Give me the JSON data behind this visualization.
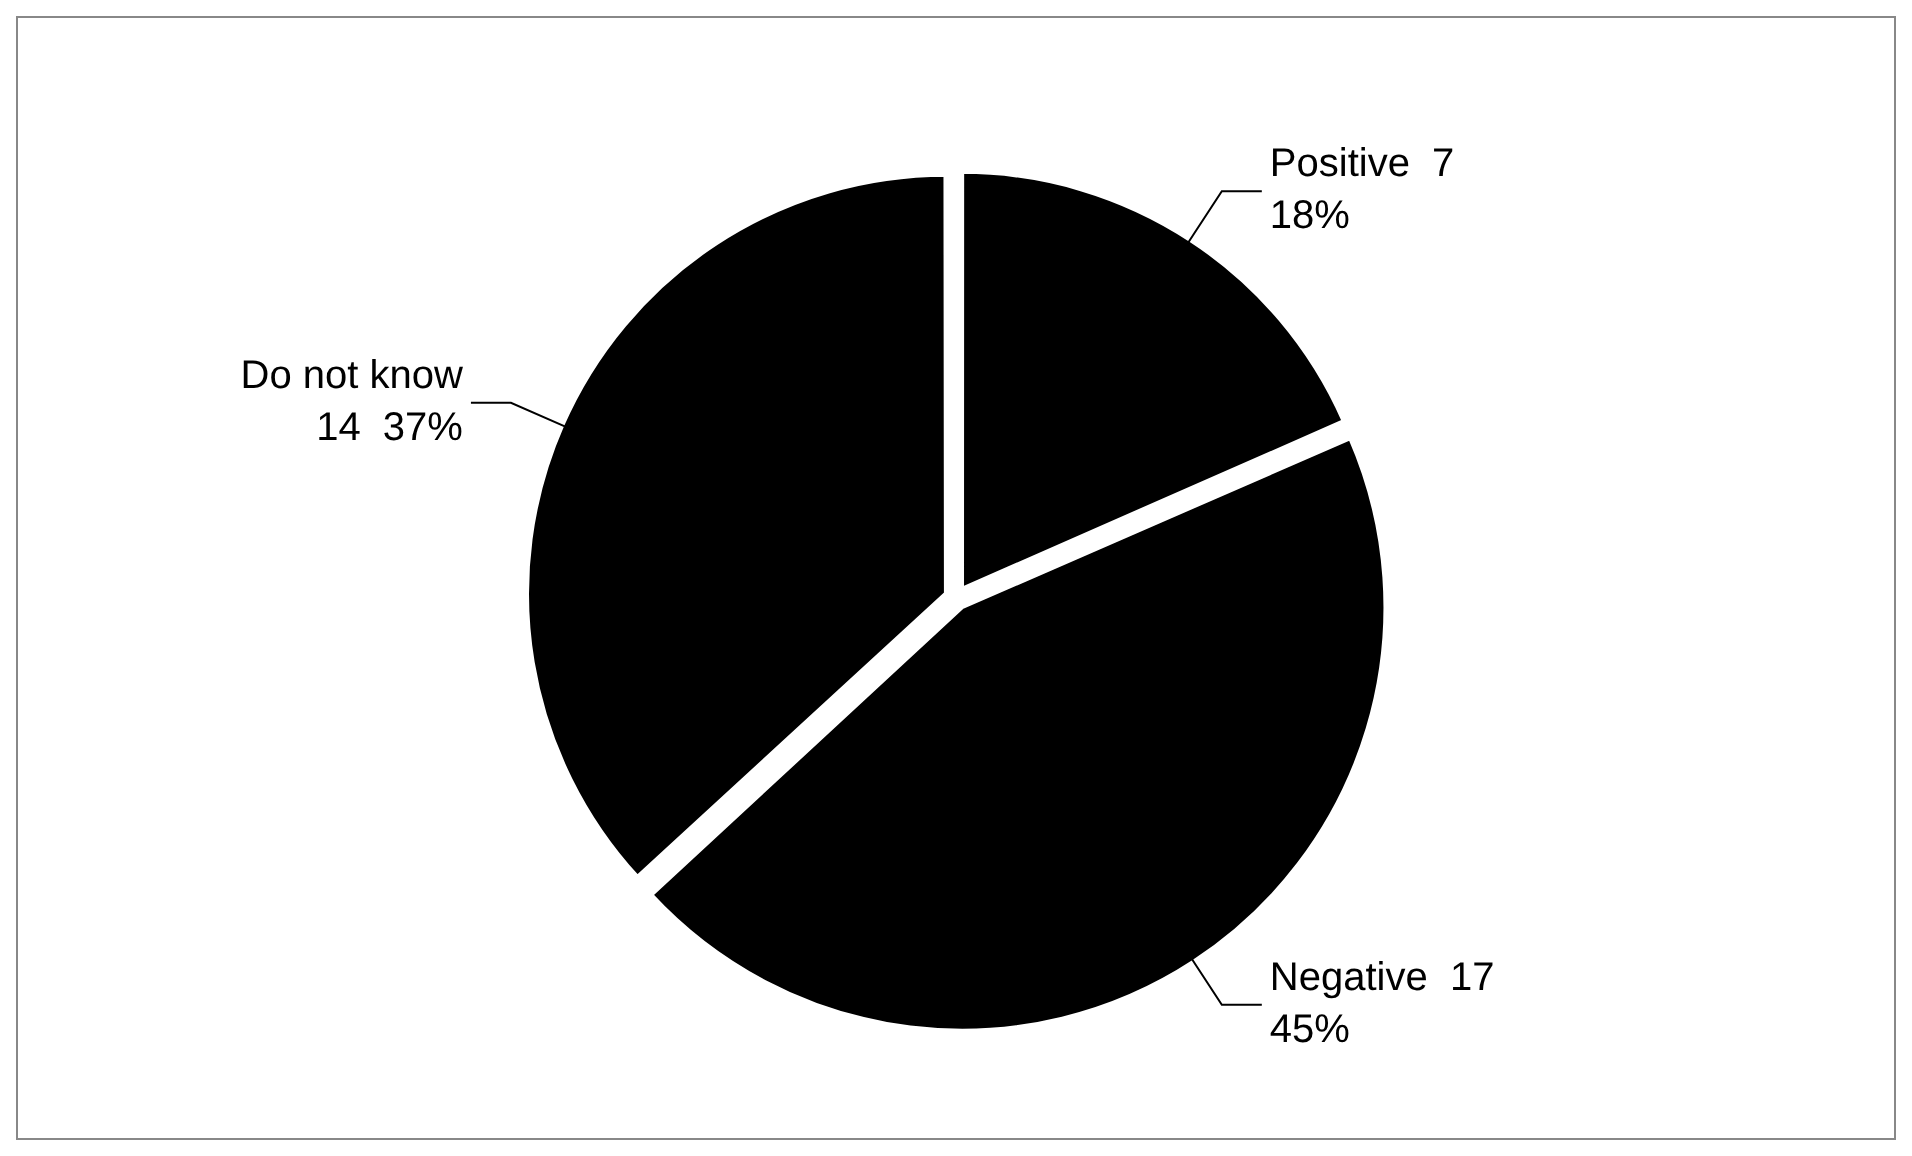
{
  "chart_data": {
    "type": "pie",
    "categories": [
      "Positive",
      "Negative",
      "Do not know"
    ],
    "values": [
      7,
      17,
      14
    ],
    "colors": [
      "#000000",
      "#000000",
      "#000000"
    ],
    "value_labels": [
      "7\n18%",
      "17\n45%",
      "\n14  37%"
    ],
    "legend": false
  }
}
